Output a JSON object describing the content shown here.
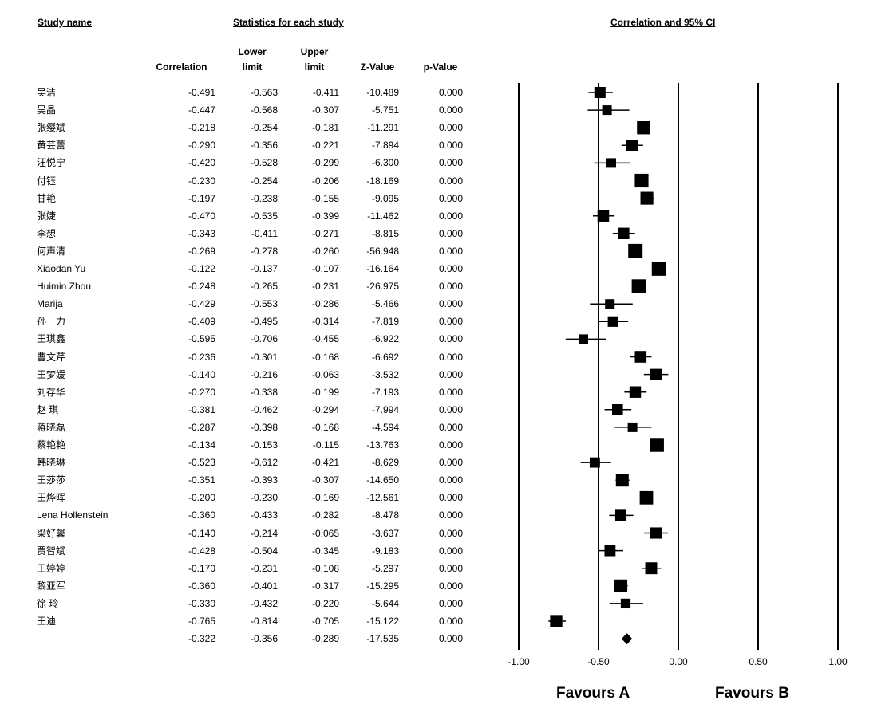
{
  "headers": {
    "study_name": "Study name",
    "stats_group": "Statistics for each study",
    "ci_title": "Correlation and 95% CI",
    "col_correlation": "Correlation",
    "col_lower": "Lower limit",
    "col_upper": "Upper limit",
    "col_z": "Z-Value",
    "col_p": "p-Value"
  },
  "favours": {
    "a": "Favours A",
    "b": "Favours B"
  },
  "chart_data": {
    "type": "forest",
    "title": "Correlation and 95% CI",
    "xlim": [
      -1.0,
      1.0
    ],
    "xticks": [
      "-1.00",
      "-0.50",
      "0.00",
      "0.50",
      "1.00"
    ],
    "xtick_values": [
      -1.0,
      -0.5,
      0.0,
      0.5,
      1.0
    ],
    "reference_lines": [
      -1.0,
      -0.5,
      0.0,
      0.5,
      1.0
    ],
    "studies": [
      {
        "name": "吴洁",
        "r": "-0.491",
        "lower": "-0.563",
        "upper": "-0.411",
        "z": "-10.489",
        "p": "0.000"
      },
      {
        "name": "吴晶",
        "r": "-0.447",
        "lower": "-0.568",
        "upper": "-0.307",
        "z": "-5.751",
        "p": "0.000"
      },
      {
        "name": "张缨斌",
        "r": "-0.218",
        "lower": "-0.254",
        "upper": "-0.181",
        "z": "-11.291",
        "p": "0.000"
      },
      {
        "name": "黄芸蕾",
        "r": "-0.290",
        "lower": "-0.356",
        "upper": "-0.221",
        "z": "-7.894",
        "p": "0.000"
      },
      {
        "name": "汪悦宁",
        "r": "-0.420",
        "lower": "-0.528",
        "upper": "-0.299",
        "z": "-6.300",
        "p": "0.000"
      },
      {
        "name": "付钰",
        "r": "-0.230",
        "lower": "-0.254",
        "upper": "-0.206",
        "z": "-18.169",
        "p": "0.000"
      },
      {
        "name": "甘艳",
        "r": "-0.197",
        "lower": "-0.238",
        "upper": "-0.155",
        "z": "-9.095",
        "p": "0.000"
      },
      {
        "name": "张婕",
        "r": "-0.470",
        "lower": "-0.535",
        "upper": "-0.399",
        "z": "-11.462",
        "p": "0.000"
      },
      {
        "name": "李想",
        "r": "-0.343",
        "lower": "-0.411",
        "upper": "-0.271",
        "z": "-8.815",
        "p": "0.000"
      },
      {
        "name": "何声清",
        "r": "-0.269",
        "lower": "-0.278",
        "upper": "-0.260",
        "z": "-56.948",
        "p": "0.000"
      },
      {
        "name": "Xiaodan Yu",
        "r": "-0.122",
        "lower": "-0.137",
        "upper": "-0.107",
        "z": "-16.164",
        "p": "0.000"
      },
      {
        "name": "Huimin Zhou",
        "r": "-0.248",
        "lower": "-0.265",
        "upper": "-0.231",
        "z": "-26.975",
        "p": "0.000"
      },
      {
        "name": "Marija",
        "r": "-0.429",
        "lower": "-0.553",
        "upper": "-0.286",
        "z": "-5.466",
        "p": "0.000"
      },
      {
        "name": "孙一力",
        "r": "-0.409",
        "lower": "-0.495",
        "upper": "-0.314",
        "z": "-7.819",
        "p": "0.000"
      },
      {
        "name": "王琪鑫",
        "r": "-0.595",
        "lower": "-0.706",
        "upper": "-0.455",
        "z": "-6.922",
        "p": "0.000"
      },
      {
        "name": "曹文芹",
        "r": "-0.236",
        "lower": "-0.301",
        "upper": "-0.168",
        "z": "-6.692",
        "p": "0.000"
      },
      {
        "name": "王梦媛",
        "r": "-0.140",
        "lower": "-0.216",
        "upper": "-0.063",
        "z": "-3.532",
        "p": "0.000"
      },
      {
        "name": "刘存华",
        "r": "-0.270",
        "lower": "-0.338",
        "upper": "-0.199",
        "z": "-7.193",
        "p": "0.000"
      },
      {
        "name": "赵 琪",
        "r": "-0.381",
        "lower": "-0.462",
        "upper": "-0.294",
        "z": "-7.994",
        "p": "0.000"
      },
      {
        "name": "蒋晓磊",
        "r": "-0.287",
        "lower": "-0.398",
        "upper": "-0.168",
        "z": "-4.594",
        "p": "0.000"
      },
      {
        "name": "蔡艳艳",
        "r": "-0.134",
        "lower": "-0.153",
        "upper": "-0.115",
        "z": "-13.763",
        "p": "0.000"
      },
      {
        "name": "韩晓琳",
        "r": "-0.523",
        "lower": "-0.612",
        "upper": "-0.421",
        "z": "-8.629",
        "p": "0.000"
      },
      {
        "name": "王莎莎",
        "r": "-0.351",
        "lower": "-0.393",
        "upper": "-0.307",
        "z": "-14.650",
        "p": "0.000"
      },
      {
        "name": "王烨晖",
        "r": "-0.200",
        "lower": "-0.230",
        "upper": "-0.169",
        "z": "-12.561",
        "p": "0.000"
      },
      {
        "name": "Lena Hollenstein",
        "r": "-0.360",
        "lower": "-0.433",
        "upper": "-0.282",
        "z": "-8.478",
        "p": "0.000"
      },
      {
        "name": "梁好馨",
        "r": "-0.140",
        "lower": "-0.214",
        "upper": "-0.065",
        "z": "-3.637",
        "p": "0.000"
      },
      {
        "name": "贾智斌",
        "r": "-0.428",
        "lower": "-0.504",
        "upper": "-0.345",
        "z": "-9.183",
        "p": "0.000"
      },
      {
        "name": "王婷婷",
        "r": "-0.170",
        "lower": "-0.231",
        "upper": "-0.108",
        "z": "-5.297",
        "p": "0.000"
      },
      {
        "name": "黎亚军",
        "r": "-0.360",
        "lower": "-0.401",
        "upper": "-0.317",
        "z": "-15.295",
        "p": "0.000"
      },
      {
        "name": "徐 玲",
        "r": "-0.330",
        "lower": "-0.432",
        "upper": "-0.220",
        "z": "-5.644",
        "p": "0.000"
      },
      {
        "name": "王迪",
        "r": "-0.765",
        "lower": "-0.814",
        "upper": "-0.705",
        "z": "-15.122",
        "p": "0.000"
      }
    ],
    "summary": {
      "r": "-0.322",
      "lower": "-0.356",
      "upper": "-0.289",
      "z": "-17.535",
      "p": "0.000"
    }
  }
}
